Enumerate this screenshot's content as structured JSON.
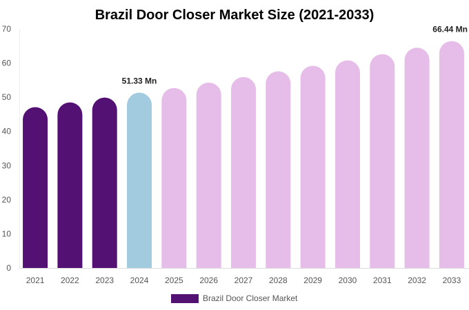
{
  "chart_data": {
    "type": "bar",
    "title": "Brazil Door Closer Market Size (2021-2033)",
    "xlabel": "",
    "ylabel": "",
    "ylim": [
      0,
      70
    ],
    "yticks": [
      0,
      10,
      20,
      30,
      40,
      50,
      60,
      70
    ],
    "categories": [
      "2021",
      "2022",
      "2023",
      "2024",
      "2025",
      "2026",
      "2027",
      "2028",
      "2029",
      "2030",
      "2031",
      "2032",
      "2033"
    ],
    "series": [
      {
        "name": "Brazil Door Closer Market",
        "values": [
          47.1,
          48.5,
          49.9,
          51.33,
          52.7,
          54.3,
          55.9,
          57.6,
          59.2,
          60.8,
          62.6,
          64.5,
          66.44
        ]
      }
    ],
    "data_labels": [
      {
        "category": "2024",
        "text": "51.33 Mn"
      },
      {
        "category": "2033",
        "text": "66.44 Mn"
      }
    ],
    "colors": {
      "historical": "#541174",
      "current": "#a3cbe0",
      "forecast": "#e6bce8"
    },
    "bar_color_groups": [
      "historical",
      "historical",
      "historical",
      "current",
      "forecast",
      "forecast",
      "forecast",
      "forecast",
      "forecast",
      "forecast",
      "forecast",
      "forecast",
      "forecast"
    ],
    "legend": {
      "position": "bottom",
      "label": "Brazil Door Closer Market"
    },
    "grid": false
  }
}
